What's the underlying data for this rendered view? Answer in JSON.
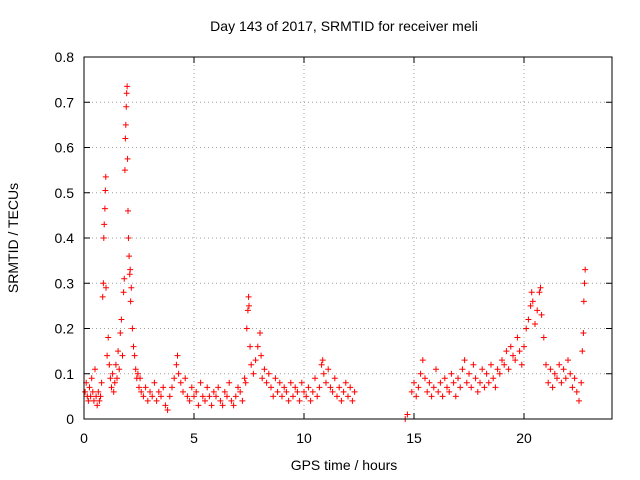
{
  "chart_data": {
    "type": "scatter",
    "title": "Day 143 of 2017, SRMTID for receiver meli",
    "xlabel": "GPS time / hours",
    "ylabel": "SRMTID / TECUs",
    "xlim": [
      0,
      24
    ],
    "ylim": [
      0,
      0.8
    ],
    "grid": true,
    "marker": "+",
    "x_ticks": [
      0,
      5,
      10,
      15,
      20
    ],
    "x_tick_labels": [
      "0",
      "5",
      "10",
      "15",
      "20"
    ],
    "y_ticks": [
      0,
      0.1,
      0.2,
      0.3,
      0.4,
      0.5,
      0.6,
      0.7,
      0.8
    ],
    "y_tick_labels": [
      "0",
      "0.1",
      "0.2",
      "0.3",
      "0.4",
      "0.5",
      "0.6",
      "0.7",
      "0.8"
    ],
    "series": [
      {
        "name": "SRMTID",
        "color": "#ff0000",
        "points": [
          [
            0.05,
            0.06
          ],
          [
            0.1,
            0.08
          ],
          [
            0.15,
            0.05
          ],
          [
            0.2,
            0.04
          ],
          [
            0.25,
            0.07
          ],
          [
            0.3,
            0.05
          ],
          [
            0.35,
            0.09
          ],
          [
            0.4,
            0.06
          ],
          [
            0.45,
            0.04
          ],
          [
            0.5,
            0.11
          ],
          [
            0.55,
            0.05
          ],
          [
            0.6,
            0.03
          ],
          [
            0.65,
            0.06
          ],
          [
            0.7,
            0.04
          ],
          [
            0.75,
            0.05
          ],
          [
            0.8,
            0.08
          ],
          [
            0.85,
            0.27
          ],
          [
            0.88,
            0.3
          ],
          [
            0.9,
            0.4
          ],
          [
            0.92,
            0.43
          ],
          [
            0.95,
            0.465
          ],
          [
            0.97,
            0.505
          ],
          [
            0.99,
            0.535
          ],
          [
            1.0,
            0.29
          ],
          [
            1.05,
            0.14
          ],
          [
            1.1,
            0.18
          ],
          [
            1.15,
            0.12
          ],
          [
            1.2,
            0.09
          ],
          [
            1.25,
            0.07
          ],
          [
            1.3,
            0.1
          ],
          [
            1.35,
            0.06
          ],
          [
            1.4,
            0.08
          ],
          [
            1.45,
            0.12
          ],
          [
            1.5,
            0.09
          ],
          [
            1.55,
            0.15
          ],
          [
            1.6,
            0.11
          ],
          [
            1.65,
            0.19
          ],
          [
            1.7,
            0.22
          ],
          [
            1.75,
            0.14
          ],
          [
            1.8,
            0.28
          ],
          [
            1.83,
            0.31
          ],
          [
            1.86,
            0.55
          ],
          [
            1.88,
            0.62
          ],
          [
            1.9,
            0.65
          ],
          [
            1.92,
            0.69
          ],
          [
            1.94,
            0.72
          ],
          [
            1.96,
            0.735
          ],
          [
            1.98,
            0.575
          ],
          [
            2.0,
            0.46
          ],
          [
            2.02,
            0.4
          ],
          [
            2.05,
            0.36
          ],
          [
            2.08,
            0.32
          ],
          [
            2.1,
            0.33
          ],
          [
            2.12,
            0.26
          ],
          [
            2.15,
            0.29
          ],
          [
            2.2,
            0.2
          ],
          [
            2.25,
            0.16
          ],
          [
            2.3,
            0.14
          ],
          [
            2.35,
            0.11
          ],
          [
            2.4,
            0.09
          ],
          [
            2.45,
            0.1
          ],
          [
            2.5,
            0.07
          ],
          [
            2.55,
            0.09
          ],
          [
            2.6,
            0.06
          ],
          [
            2.7,
            0.05
          ],
          [
            2.8,
            0.07
          ],
          [
            2.9,
            0.04
          ],
          [
            3.0,
            0.06
          ],
          [
            3.1,
            0.05
          ],
          [
            3.2,
            0.08
          ],
          [
            3.3,
            0.04
          ],
          [
            3.4,
            0.06
          ],
          [
            3.5,
            0.05
          ],
          [
            3.6,
            0.07
          ],
          [
            3.7,
            0.03
          ],
          [
            3.8,
            0.02
          ],
          [
            3.9,
            0.05
          ],
          [
            4.0,
            0.07
          ],
          [
            4.1,
            0.09
          ],
          [
            4.2,
            0.12
          ],
          [
            4.25,
            0.14
          ],
          [
            4.3,
            0.1
          ],
          [
            4.4,
            0.08
          ],
          [
            4.5,
            0.06
          ],
          [
            4.6,
            0.09
          ],
          [
            4.7,
            0.05
          ],
          [
            4.8,
            0.04
          ],
          [
            4.9,
            0.07
          ],
          [
            5.0,
            0.05
          ],
          [
            5.1,
            0.06
          ],
          [
            5.2,
            0.03
          ],
          [
            5.3,
            0.08
          ],
          [
            5.4,
            0.05
          ],
          [
            5.5,
            0.04
          ],
          [
            5.6,
            0.07
          ],
          [
            5.7,
            0.05
          ],
          [
            5.8,
            0.03
          ],
          [
            5.9,
            0.06
          ],
          [
            6.0,
            0.05
          ],
          [
            6.1,
            0.07
          ],
          [
            6.2,
            0.04
          ],
          [
            6.3,
            0.03
          ],
          [
            6.4,
            0.06
          ],
          [
            6.5,
            0.05
          ],
          [
            6.6,
            0.08
          ],
          [
            6.7,
            0.04
          ],
          [
            6.8,
            0.03
          ],
          [
            6.9,
            0.05
          ],
          [
            7.0,
            0.07
          ],
          [
            7.1,
            0.06
          ],
          [
            7.2,
            0.04
          ],
          [
            7.3,
            0.09
          ],
          [
            7.35,
            0.08
          ],
          [
            7.4,
            0.2
          ],
          [
            7.45,
            0.24
          ],
          [
            7.48,
            0.27
          ],
          [
            7.5,
            0.25
          ],
          [
            7.55,
            0.16
          ],
          [
            7.6,
            0.12
          ],
          [
            7.7,
            0.1
          ],
          [
            7.8,
            0.13
          ],
          [
            7.9,
            0.16
          ],
          [
            8.0,
            0.19
          ],
          [
            8.05,
            0.14
          ],
          [
            8.1,
            0.09
          ],
          [
            8.2,
            0.11
          ],
          [
            8.3,
            0.08
          ],
          [
            8.4,
            0.1
          ],
          [
            8.5,
            0.07
          ],
          [
            8.6,
            0.05
          ],
          [
            8.7,
            0.09
          ],
          [
            8.8,
            0.06
          ],
          [
            8.9,
            0.08
          ],
          [
            9.0,
            0.05
          ],
          [
            9.1,
            0.07
          ],
          [
            9.2,
            0.06
          ],
          [
            9.3,
            0.04
          ],
          [
            9.4,
            0.08
          ],
          [
            9.5,
            0.05
          ],
          [
            9.6,
            0.07
          ],
          [
            9.7,
            0.06
          ],
          [
            9.8,
            0.04
          ],
          [
            9.9,
            0.08
          ],
          [
            10.0,
            0.06
          ],
          [
            10.1,
            0.05
          ],
          [
            10.2,
            0.07
          ],
          [
            10.3,
            0.04
          ],
          [
            10.4,
            0.06
          ],
          [
            10.5,
            0.09
          ],
          [
            10.6,
            0.05
          ],
          [
            10.7,
            0.07
          ],
          [
            10.8,
            0.12
          ],
          [
            10.85,
            0.13
          ],
          [
            10.9,
            0.1
          ],
          [
            11.0,
            0.08
          ],
          [
            11.1,
            0.11
          ],
          [
            11.2,
            0.07
          ],
          [
            11.3,
            0.06
          ],
          [
            11.4,
            0.09
          ],
          [
            11.5,
            0.05
          ],
          [
            11.6,
            0.07
          ],
          [
            11.7,
            0.04
          ],
          [
            11.8,
            0.06
          ],
          [
            11.9,
            0.08
          ],
          [
            12.0,
            0.05
          ],
          [
            12.1,
            0.07
          ],
          [
            12.2,
            0.04
          ],
          [
            12.3,
            0.06
          ],
          [
            14.6,
            0.0
          ],
          [
            14.7,
            0.01
          ],
          [
            14.9,
            0.06
          ],
          [
            15.0,
            0.08
          ],
          [
            15.1,
            0.05
          ],
          [
            15.2,
            0.07
          ],
          [
            15.3,
            0.1
          ],
          [
            15.4,
            0.13
          ],
          [
            15.5,
            0.09
          ],
          [
            15.6,
            0.06
          ],
          [
            15.7,
            0.08
          ],
          [
            15.8,
            0.05
          ],
          [
            15.9,
            0.07
          ],
          [
            16.0,
            0.11
          ],
          [
            16.1,
            0.06
          ],
          [
            16.2,
            0.08
          ],
          [
            16.3,
            0.05
          ],
          [
            16.4,
            0.09
          ],
          [
            16.5,
            0.07
          ],
          [
            16.6,
            0.06
          ],
          [
            16.7,
            0.1
          ],
          [
            16.8,
            0.08
          ],
          [
            16.9,
            0.05
          ],
          [
            17.0,
            0.09
          ],
          [
            17.1,
            0.07
          ],
          [
            17.2,
            0.11
          ],
          [
            17.3,
            0.13
          ],
          [
            17.4,
            0.08
          ],
          [
            17.5,
            0.1
          ],
          [
            17.6,
            0.07
          ],
          [
            17.7,
            0.12
          ],
          [
            17.8,
            0.09
          ],
          [
            17.9,
            0.06
          ],
          [
            18.0,
            0.08
          ],
          [
            18.1,
            0.11
          ],
          [
            18.2,
            0.07
          ],
          [
            18.3,
            0.1
          ],
          [
            18.4,
            0.08
          ],
          [
            18.5,
            0.12
          ],
          [
            18.6,
            0.09
          ],
          [
            18.7,
            0.07
          ],
          [
            18.8,
            0.11
          ],
          [
            18.9,
            0.1
          ],
          [
            19.0,
            0.13
          ],
          [
            19.1,
            0.12
          ],
          [
            19.2,
            0.15
          ],
          [
            19.3,
            0.11
          ],
          [
            19.4,
            0.16
          ],
          [
            19.5,
            0.14
          ],
          [
            19.6,
            0.13
          ],
          [
            19.7,
            0.18
          ],
          [
            19.8,
            0.15
          ],
          [
            19.9,
            0.12
          ],
          [
            20.0,
            0.16
          ],
          [
            20.1,
            0.2
          ],
          [
            20.2,
            0.22
          ],
          [
            20.3,
            0.25
          ],
          [
            20.35,
            0.28
          ],
          [
            20.4,
            0.26
          ],
          [
            20.5,
            0.21
          ],
          [
            20.6,
            0.24
          ],
          [
            20.7,
            0.28
          ],
          [
            20.75,
            0.29
          ],
          [
            20.8,
            0.23
          ],
          [
            20.9,
            0.18
          ],
          [
            21.0,
            0.12
          ],
          [
            21.1,
            0.08
          ],
          [
            21.2,
            0.11
          ],
          [
            21.3,
            0.07
          ],
          [
            21.4,
            0.1
          ],
          [
            21.5,
            0.09
          ],
          [
            21.6,
            0.12
          ],
          [
            21.7,
            0.08
          ],
          [
            21.8,
            0.11
          ],
          [
            21.9,
            0.09
          ],
          [
            22.0,
            0.13
          ],
          [
            22.1,
            0.1
          ],
          [
            22.2,
            0.07
          ],
          [
            22.3,
            0.09
          ],
          [
            22.4,
            0.06
          ],
          [
            22.5,
            0.04
          ],
          [
            22.6,
            0.08
          ],
          [
            22.65,
            0.15
          ],
          [
            22.7,
            0.19
          ],
          [
            22.72,
            0.26
          ],
          [
            22.75,
            0.3
          ],
          [
            22.78,
            0.33
          ]
        ]
      }
    ]
  }
}
